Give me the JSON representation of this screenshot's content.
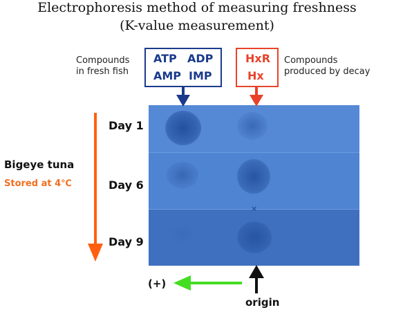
{
  "title": {
    "line1": "Electrophoresis method of measuring freshness",
    "line2": "(K-value measurement)"
  },
  "fresh": {
    "caption_line1": "Compounds",
    "caption_line2": "in fresh fish",
    "compounds": [
      "ATP",
      "ADP",
      "AMP",
      "IMP"
    ],
    "color": "#1a3a8c"
  },
  "decay": {
    "caption_line1": "Compounds",
    "caption_line2": "produced by decay",
    "compounds": [
      "HxR",
      "Hx"
    ],
    "color": "#e8432a"
  },
  "sample": {
    "name": "Bigeye tuna",
    "storage": "Stored at 4℃",
    "storage_color": "#f07020"
  },
  "days": [
    "Day 1",
    "Day 6",
    "Day 9"
  ],
  "spots": {
    "fresh_intensity": [
      1.0,
      0.55,
      0.12
    ],
    "decay_intensity": [
      0.55,
      0.9,
      0.85
    ]
  },
  "direction_label": "(+)",
  "origin_label": "origin",
  "colors": {
    "gel": "#4a7fcb",
    "spot": "#23509e",
    "time_arrow": "#ff6010",
    "direction_arrow": "#44dd22"
  }
}
